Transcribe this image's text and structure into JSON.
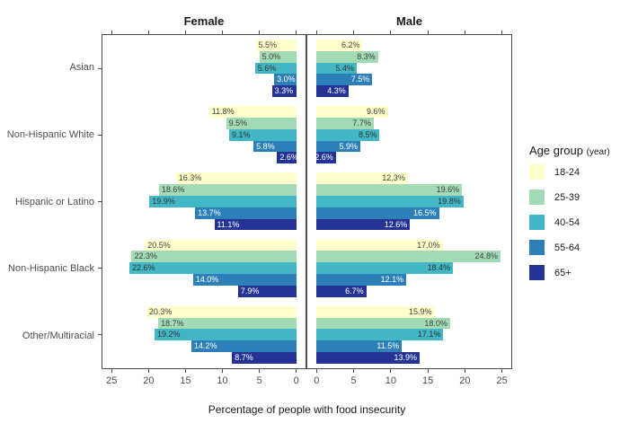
{
  "figure": {
    "xlabel": "Percentage of people with food insecurity"
  },
  "legend": {
    "title": "Age group",
    "title_suffix": "(year)",
    "items": [
      "18-24",
      "25-39",
      "40-54",
      "55-64",
      "65+"
    ]
  },
  "chart_data": {
    "type": "bar",
    "orientation": "horizontal-diverging",
    "title": "",
    "xlabel": "Percentage of people with food insecurity",
    "facets": [
      "Female",
      "Male"
    ],
    "categories": [
      "Asian",
      "Non-Hispanic White",
      "Hispanic or Latino",
      "Non-Hispanic Black",
      "Other/Multiracial"
    ],
    "series_name": "Age group (year)",
    "age_groups": [
      "18-24",
      "25-39",
      "40-54",
      "55-64",
      "65+"
    ],
    "colors": [
      "#FFFFCC",
      "#A1DAB4",
      "#41B6C4",
      "#2C7FB8",
      "#253494"
    ],
    "label_text_colors": [
      "#404040",
      "#404040",
      "#333333",
      "#ffffff",
      "#ffffff"
    ],
    "values": {
      "Female": [
        [
          5.5,
          5.0,
          5.6,
          3.0,
          3.3
        ],
        [
          11.8,
          9.5,
          9.1,
          5.8,
          2.6
        ],
        [
          16.3,
          18.6,
          19.9,
          13.7,
          11.1
        ],
        [
          20.5,
          22.3,
          22.6,
          14.0,
          7.9
        ],
        [
          20.3,
          18.7,
          19.2,
          14.2,
          8.7
        ]
      ],
      "Male": [
        [
          6.2,
          8.3,
          5.4,
          7.5,
          4.3
        ],
        [
          9.6,
          7.7,
          8.5,
          5.9,
          2.6
        ],
        [
          12.3,
          19.6,
          19.8,
          16.5,
          12.6
        ],
        [
          17.0,
          24.8,
          18.4,
          12.1,
          6.7
        ],
        [
          15.9,
          18.0,
          17.1,
          11.5,
          13.9
        ]
      ]
    },
    "x_ticks": [
      0,
      5,
      10,
      15,
      20,
      25
    ],
    "xlim": [
      0,
      25
    ],
    "axis_expansion_units": 1.25,
    "grid": false,
    "legend_position": "right",
    "value_suffix": "%"
  }
}
